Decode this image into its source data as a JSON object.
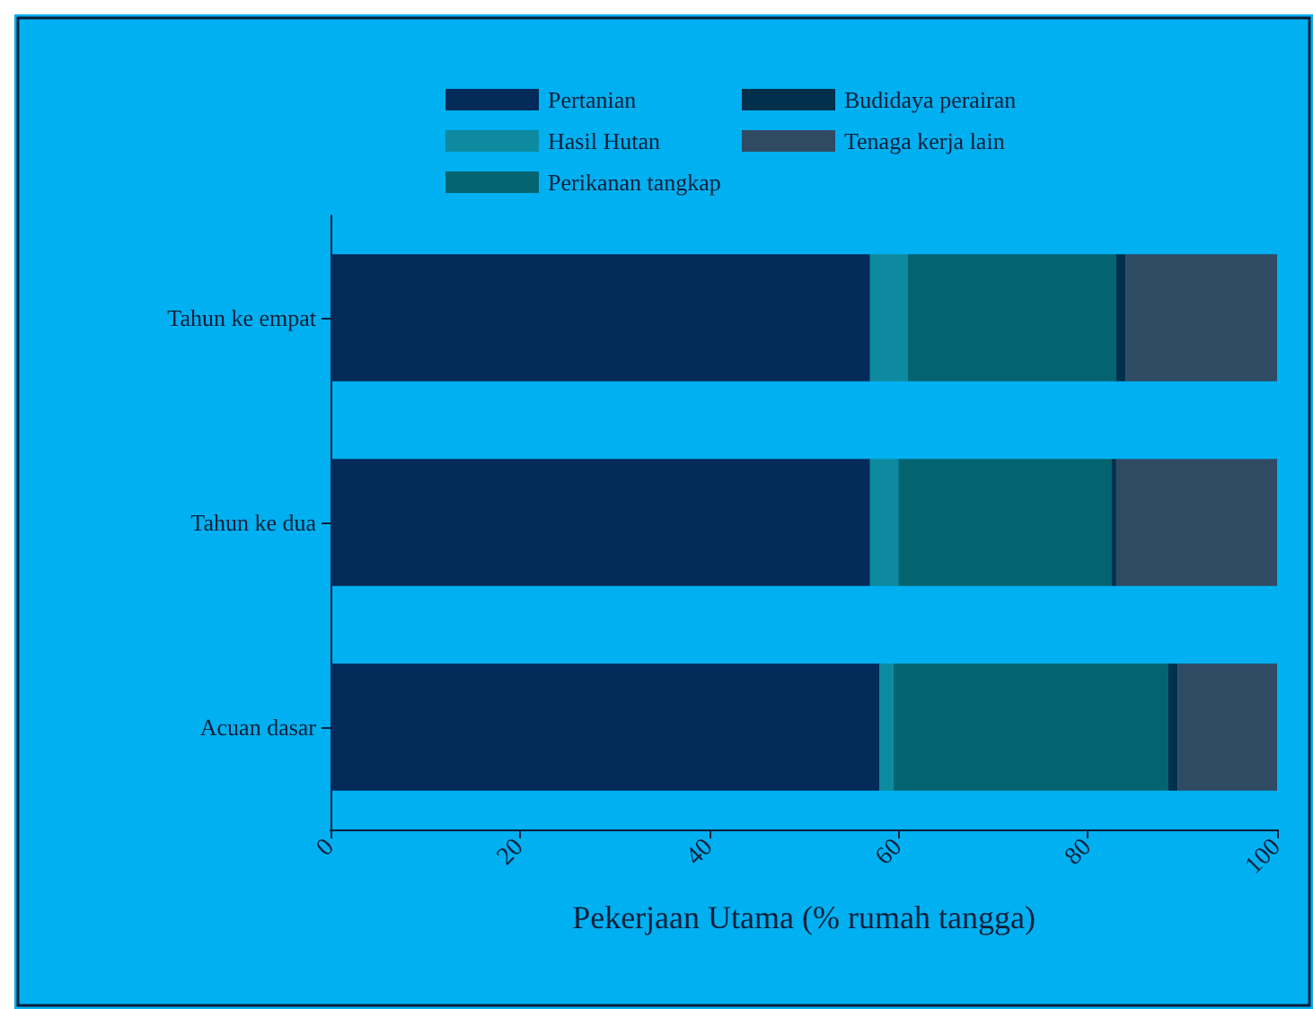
{
  "chart_data": {
    "type": "bar",
    "orientation": "horizontal",
    "stacked": true,
    "xlabel": "Pekerjaan Utama (% rumah tangga)",
    "categories": [
      "Tahun ke empat",
      "Tahun ke dua",
      "Acuan dasar"
    ],
    "series": [
      {
        "name": "Pertanian",
        "color": "#022b5a",
        "values": [
          57,
          57,
          58
        ]
      },
      {
        "name": "Hasil Hutan",
        "color": "#0e8aa0",
        "values": [
          4,
          3,
          1.5
        ]
      },
      {
        "name": "Perikanan tangkap",
        "color": "#036470",
        "values": [
          22,
          22.5,
          29
        ]
      },
      {
        "name": "Budidaya perairan",
        "color": "#01304c",
        "values": [
          1,
          0.5,
          1
        ]
      },
      {
        "name": "Tenaga kerja lain",
        "color": "#2f4a63",
        "values": [
          16,
          17,
          10.5
        ]
      }
    ],
    "xlim": [
      0,
      100
    ],
    "xticks": [
      0,
      20,
      40,
      60,
      80,
      100
    ],
    "grid": false,
    "legend": "top"
  }
}
